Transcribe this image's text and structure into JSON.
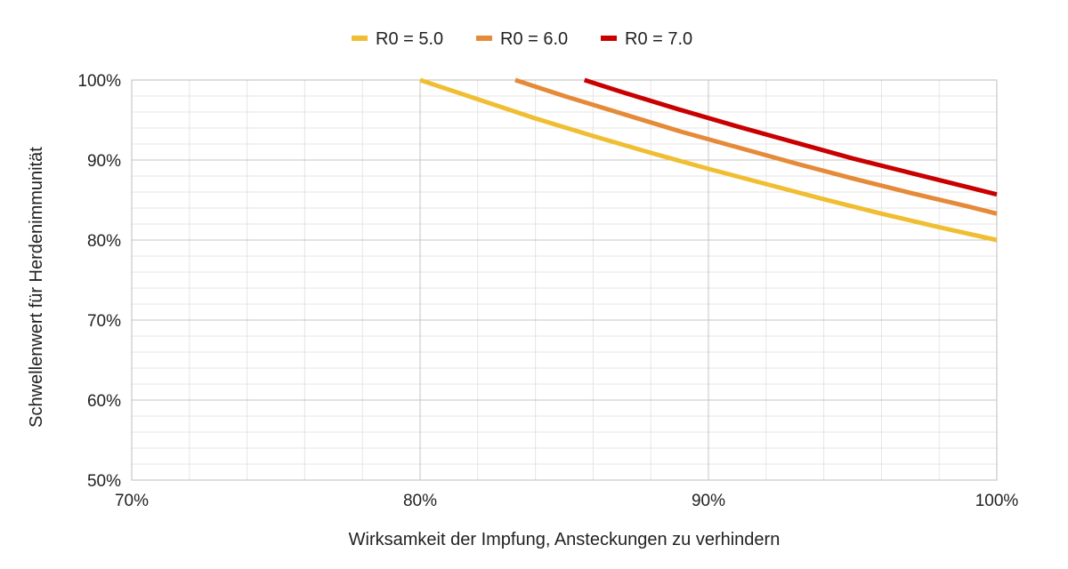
{
  "chart_data": {
    "type": "line",
    "title": "",
    "xlabel": "Wirksamkeit der Impfung, Ansteckungen zu verhindern",
    "ylabel": "Schwellenwert für Herdenimmunität",
    "xlim": [
      0.7,
      1.0
    ],
    "ylim": [
      0.5,
      1.0
    ],
    "x_major_ticks": [
      0.7,
      0.8,
      0.9,
      1.0
    ],
    "x_tick_labels": [
      "70%",
      "80%",
      "90%",
      "100%"
    ],
    "y_major_ticks": [
      0.5,
      0.6,
      0.7,
      0.8,
      0.9,
      1.0
    ],
    "y_tick_labels": [
      "50%",
      "60%",
      "70%",
      "80%",
      "90%",
      "100%"
    ],
    "grid": true,
    "legend_position": "top-center",
    "series": [
      {
        "name": "R0 = 5.0",
        "color": "#F0BE32",
        "x": [
          0.8,
          0.82,
          0.84,
          0.86,
          0.88,
          0.9,
          0.92,
          0.94,
          0.96,
          0.98,
          1.0
        ],
        "y": [
          1.0,
          0.976,
          0.952,
          0.93,
          0.909,
          0.889,
          0.87,
          0.851,
          0.833,
          0.816,
          0.8
        ]
      },
      {
        "name": "R0 = 6.0",
        "color": "#E58A38",
        "x": [
          0.833,
          0.85,
          0.87,
          0.89,
          0.91,
          0.93,
          0.95,
          0.97,
          0.99,
          1.0
        ],
        "y": [
          1.0,
          0.98,
          0.958,
          0.936,
          0.916,
          0.896,
          0.877,
          0.859,
          0.842,
          0.833
        ]
      },
      {
        "name": "R0 = 7.0",
        "color": "#C80000",
        "x": [
          0.857,
          0.87,
          0.89,
          0.91,
          0.93,
          0.95,
          0.97,
          0.99,
          1.0
        ],
        "y": [
          1.0,
          0.985,
          0.963,
          0.942,
          0.922,
          0.902,
          0.884,
          0.866,
          0.857
        ]
      }
    ]
  }
}
